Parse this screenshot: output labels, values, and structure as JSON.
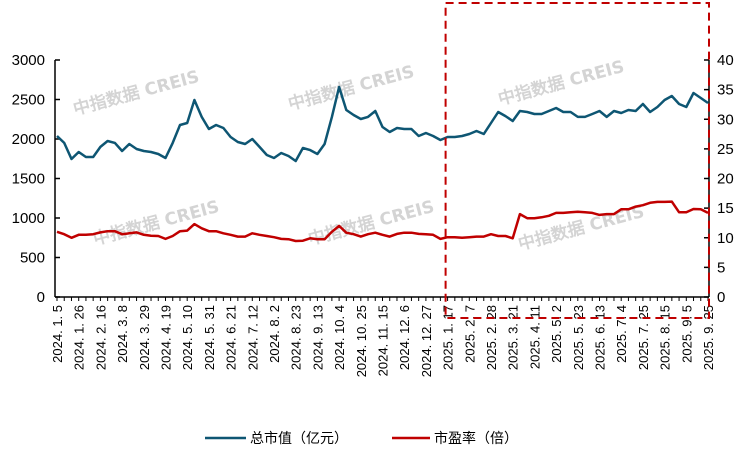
{
  "watermark": "中指数据 CREIS",
  "chart_data": {
    "type": "line",
    "title": "",
    "x_tick_labels": [
      "2024.1.5",
      "2024.1.26",
      "2024.2.16",
      "2024.3.8",
      "2024.3.29",
      "2024.4.19",
      "2024.5.10",
      "2024.5.31",
      "2024.6.21",
      "2024.7.12",
      "2024.8.2",
      "2024.8.23",
      "2024.9.13",
      "2024.10.4",
      "2024.10.25",
      "2024.11.15",
      "2024.12.6",
      "2024.12.27",
      "2025.1.17",
      "2025.2.7",
      "2025.2.28",
      "2025.3.21",
      "2025.4.11",
      "2025.5.2",
      "2025.5.23",
      "2025.6.13",
      "2025.7.4",
      "2025.7.25",
      "2025.8.15",
      "2025.9.5",
      "2025.9.25"
    ],
    "x_tick_every": 3,
    "y_left": {
      "label": "",
      "ylim": [
        0,
        3000
      ],
      "ticks": [
        0,
        500,
        1000,
        1500,
        2000,
        2500,
        3000
      ]
    },
    "y_right": {
      "label": "",
      "ylim": [
        0,
        40
      ],
      "ticks": [
        0,
        5,
        10,
        15,
        20,
        25,
        30,
        35,
        40
      ]
    },
    "highlight_range_start_label": "2025.1.17",
    "highlight_color": "#c00000",
    "legend_position": "bottom",
    "series": [
      {
        "name": "总市值（亿元）",
        "axis": "left",
        "color": "#0e5673",
        "values": [
          2038,
          1950,
          1747,
          1835,
          1772,
          1772,
          1900,
          1975,
          1950,
          1848,
          1937,
          1873,
          1848,
          1835,
          1810,
          1760,
          1950,
          2177,
          2203,
          2494,
          2280,
          2127,
          2177,
          2139,
          2025,
          1962,
          1937,
          2000,
          1900,
          1797,
          1760,
          1823,
          1785,
          1722,
          1886,
          1860,
          1810,
          1937,
          2280,
          2658,
          2367,
          2304,
          2253,
          2280,
          2354,
          2152,
          2089,
          2139,
          2127,
          2127,
          2038,
          2076,
          2038,
          1987,
          2025,
          2025,
          2038,
          2063,
          2101,
          2063,
          2203,
          2342,
          2290,
          2228,
          2354,
          2342,
          2316,
          2316,
          2354,
          2392,
          2342,
          2342,
          2280,
          2280,
          2316,
          2354,
          2280,
          2354,
          2329,
          2367,
          2354,
          2443,
          2342,
          2405,
          2494,
          2544,
          2443,
          2405,
          2582,
          2519,
          2456
        ]
      },
      {
        "name": "市盈率（倍）",
        "axis": "right",
        "color": "#c00000",
        "values": [
          11.0,
          10.6,
          10.0,
          10.5,
          10.5,
          10.6,
          10.9,
          11.1,
          11.1,
          10.6,
          10.75,
          10.9,
          10.5,
          10.35,
          10.3,
          9.8,
          10.3,
          11.1,
          11.2,
          12.3,
          11.6,
          11.1,
          11.1,
          10.75,
          10.5,
          10.2,
          10.2,
          10.75,
          10.5,
          10.3,
          10.1,
          9.8,
          9.75,
          9.45,
          9.5,
          9.9,
          9.75,
          9.75,
          11.0,
          12.0,
          10.85,
          10.6,
          10.2,
          10.6,
          10.85,
          10.5,
          10.2,
          10.65,
          10.85,
          10.85,
          10.65,
          10.6,
          10.5,
          9.8,
          10.1,
          10.1,
          10.0,
          10.1,
          10.2,
          10.2,
          10.6,
          10.3,
          10.3,
          9.9,
          14.0,
          13.3,
          13.3,
          13.45,
          13.7,
          14.2,
          14.2,
          14.3,
          14.4,
          14.3,
          14.2,
          13.85,
          14.0,
          14.0,
          14.8,
          14.8,
          15.25,
          15.5,
          15.9,
          16.05,
          16.05,
          16.1,
          14.3,
          14.3,
          14.85,
          14.8,
          14.2
        ]
      }
    ]
  }
}
